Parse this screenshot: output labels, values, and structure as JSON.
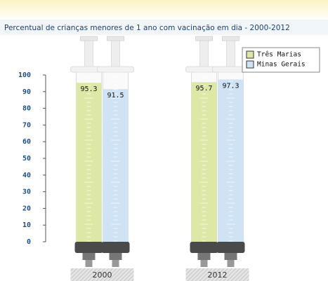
{
  "chart_data": {
    "type": "bar",
    "title": "Percentual de crianças menores de 1 ano com vacinação em dia - 2000-2012",
    "categories": [
      "2000",
      "2012"
    ],
    "series": [
      {
        "name": "Três Marias",
        "color": "#dde8a6",
        "values": [
          95.3,
          95.7
        ]
      },
      {
        "name": "Minas Gerais",
        "color": "#cfe3f5",
        "values": [
          91.5,
          97.3
        ]
      }
    ],
    "ylim": [
      0,
      100
    ],
    "yticks": [
      0,
      10,
      20,
      30,
      40,
      50,
      60,
      70,
      80,
      90,
      100
    ],
    "legend": "top-right"
  }
}
